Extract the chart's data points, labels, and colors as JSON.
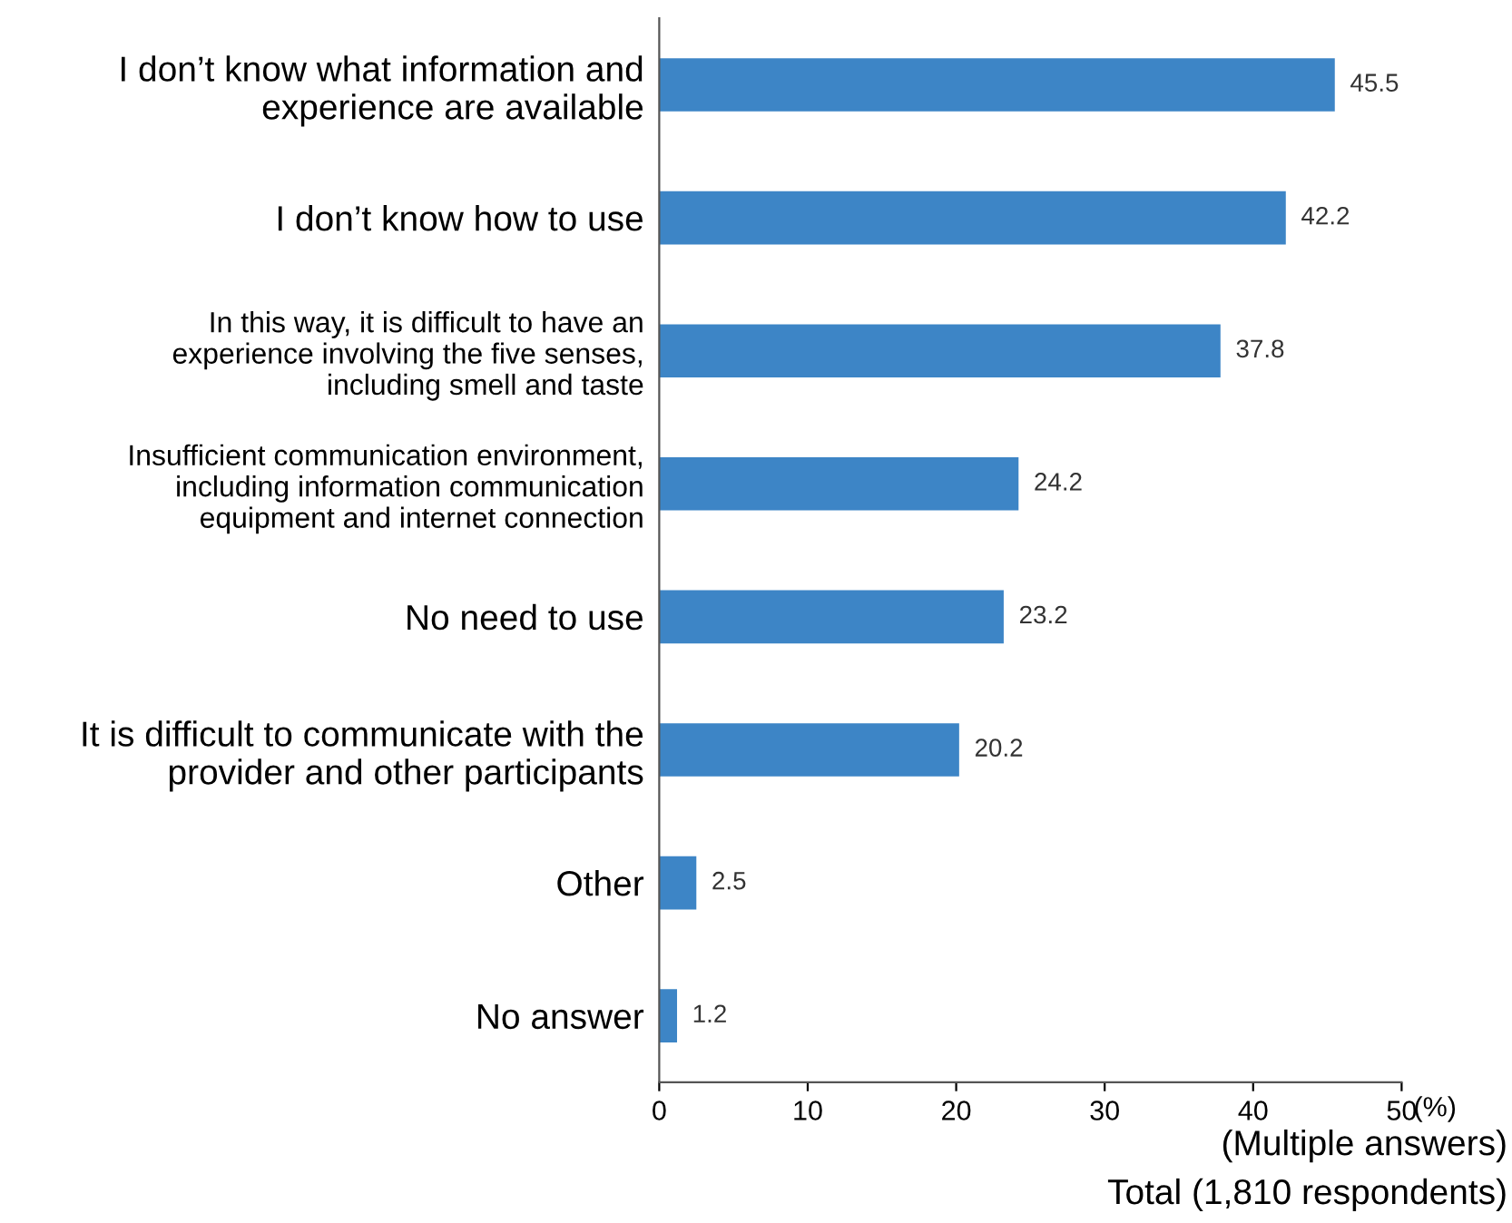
{
  "chart_data": {
    "type": "bar",
    "orientation": "horizontal",
    "categories": [
      "I don’t know what information and\nexperience are available",
      "I don’t know how to use",
      "In this way, it is difficult to have an\nexperience involving the five senses,\nincluding smell and taste",
      "Insufficient communication environment,\nincluding information communication\nequipment and internet connection",
      "No need to use",
      "It is difficult to communicate with the\nprovider and other participants",
      "Other",
      "No answer"
    ],
    "values": [
      45.5,
      42.2,
      37.8,
      24.2,
      23.2,
      20.2,
      2.5,
      1.2
    ],
    "color": "#3d85c6",
    "data_labels": true,
    "xlim": [
      0,
      50
    ],
    "xticks": [
      0,
      10,
      20,
      30,
      40,
      50
    ],
    "xlabel": "(%)",
    "annotations": [
      "(Multiple answers)",
      "Total (1,810 respondents)"
    ],
    "grid": false,
    "legend": false
  }
}
